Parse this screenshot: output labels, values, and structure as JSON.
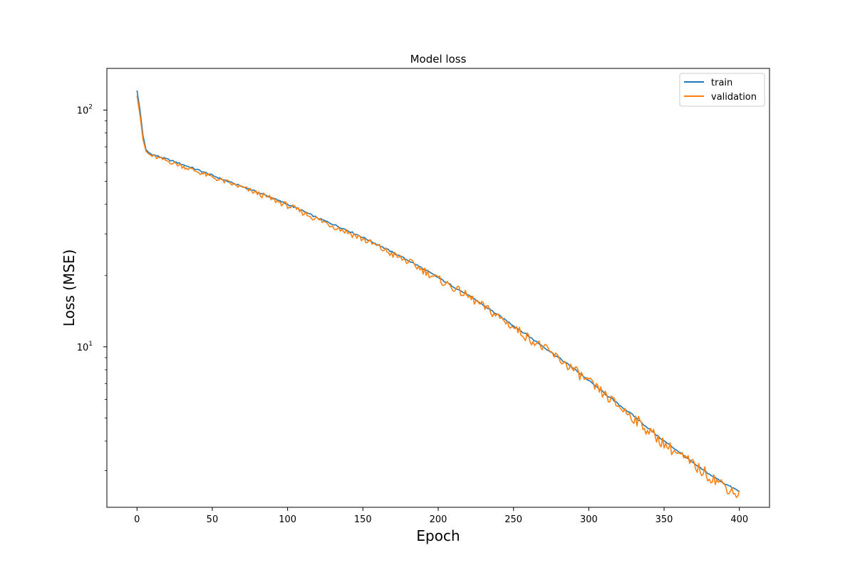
{
  "chart_data": {
    "type": "line",
    "title": "Model loss",
    "xlabel": "Epoch",
    "ylabel": "Loss (MSE)",
    "x_scale": "linear",
    "y_scale": "log",
    "xlim": [
      -20,
      420
    ],
    "ylim": [
      2.1,
      150
    ],
    "xticks": [
      0,
      50,
      100,
      150,
      200,
      250,
      300,
      350,
      400
    ],
    "yticks": [
      {
        "value": 10,
        "mantissa": "10",
        "exponent": "1"
      },
      {
        "value": 100,
        "mantissa": "10",
        "exponent": "2"
      }
    ],
    "grid": false,
    "legend": {
      "location": "upper right"
    },
    "series": [
      {
        "name": "train",
        "color": "#1f77b4",
        "x": [
          0,
          2,
          4,
          6,
          8,
          10,
          20,
          30,
          40,
          50,
          60,
          70,
          80,
          90,
          100,
          110,
          120,
          130,
          140,
          150,
          160,
          170,
          180,
          190,
          200,
          210,
          220,
          230,
          240,
          250,
          260,
          270,
          280,
          290,
          300,
          310,
          320,
          330,
          340,
          350,
          360,
          370,
          380,
          390,
          400
        ],
        "values": [
          121,
          100,
          78,
          68,
          66,
          65,
          62,
          59,
          56,
          53,
          50,
          47.5,
          45,
          42.5,
          40,
          37.5,
          35,
          33,
          31,
          29,
          27,
          25,
          23.2,
          21.4,
          19.6,
          18,
          16.5,
          15,
          13.6,
          12.3,
          11.1,
          10,
          9.0,
          8.1,
          7.2,
          6.4,
          5.7,
          5.1,
          4.5,
          4.0,
          3.6,
          3.2,
          2.9,
          2.65,
          2.45
        ]
      },
      {
        "name": "validation",
        "color": "#ff7f0e",
        "x": [
          0,
          2,
          4,
          6,
          8,
          10,
          20,
          30,
          40,
          50,
          60,
          70,
          80,
          90,
          100,
          110,
          120,
          130,
          140,
          150,
          160,
          170,
          180,
          190,
          200,
          210,
          220,
          230,
          240,
          250,
          260,
          270,
          280,
          290,
          300,
          310,
          320,
          330,
          340,
          350,
          360,
          370,
          380,
          390,
          400
        ],
        "values": [
          115,
          95,
          75,
          67,
          65,
          64,
          61,
          58,
          55,
          52,
          49.5,
          47,
          44.5,
          42,
          39.5,
          37,
          34.5,
          32.5,
          30.5,
          28.5,
          26.5,
          24.5,
          22.9,
          21.1,
          19.3,
          17.8,
          16.3,
          14.8,
          13.4,
          12.1,
          10.9,
          9.9,
          8.9,
          8.0,
          7.1,
          6.3,
          5.6,
          5.0,
          4.4,
          3.9,
          3.5,
          3.15,
          2.85,
          2.6,
          2.35
        ]
      }
    ]
  }
}
